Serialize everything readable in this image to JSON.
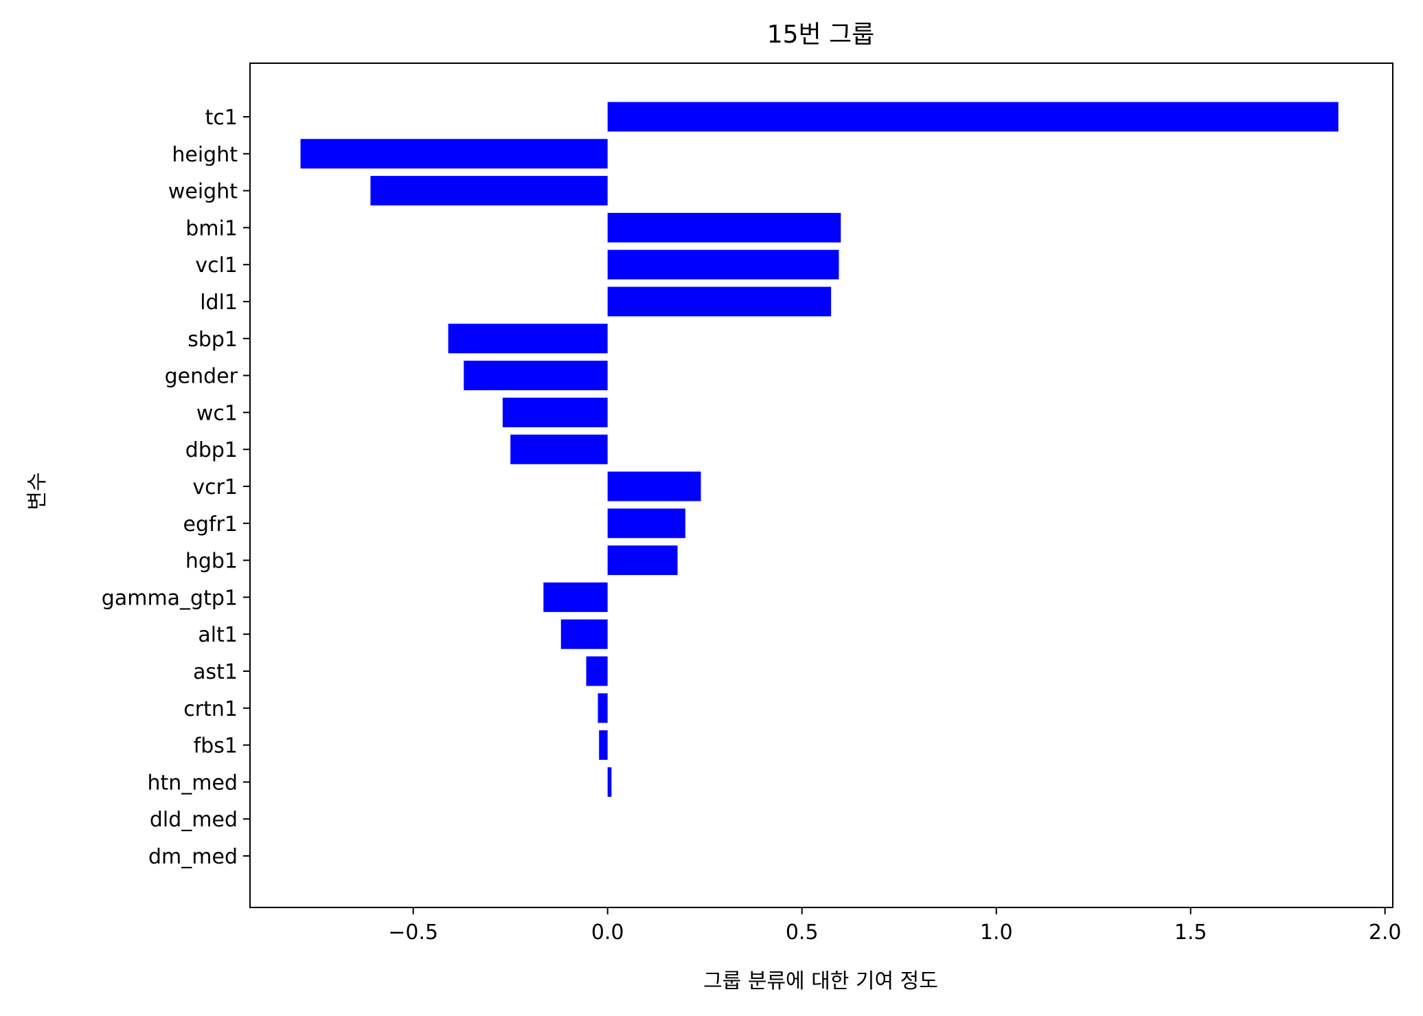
{
  "chart_data": {
    "type": "bar",
    "orientation": "horizontal",
    "title": "15번 그룹",
    "xlabel": "그룹 분류에 대한 기여 정도",
    "ylabel": "변수",
    "xlim": [
      -0.92,
      2.02
    ],
    "xticks": [
      -0.5,
      0.0,
      0.5,
      1.0,
      1.5,
      2.0
    ],
    "xtick_labels": [
      "−0.5",
      "0.0",
      "0.5",
      "1.0",
      "1.5",
      "2.0"
    ],
    "bar_color": "#0000ff",
    "grid": false,
    "categories": [
      "tc1",
      "height",
      "weight",
      "bmi1",
      "vcl1",
      "ldl1",
      "sbp1",
      "gender",
      "wc1",
      "dbp1",
      "vcr1",
      "egfr1",
      "hgb1",
      "gamma_gtp1",
      "alt1",
      "ast1",
      "crtn1",
      "fbs1",
      "htn_med",
      "dld_med",
      "dm_med"
    ],
    "values": [
      1.88,
      -0.79,
      -0.61,
      0.6,
      0.595,
      0.575,
      -0.41,
      -0.37,
      -0.27,
      -0.25,
      0.24,
      0.2,
      0.18,
      -0.165,
      -0.12,
      -0.055,
      -0.025,
      -0.022,
      0.01,
      0.0,
      0.0
    ]
  }
}
